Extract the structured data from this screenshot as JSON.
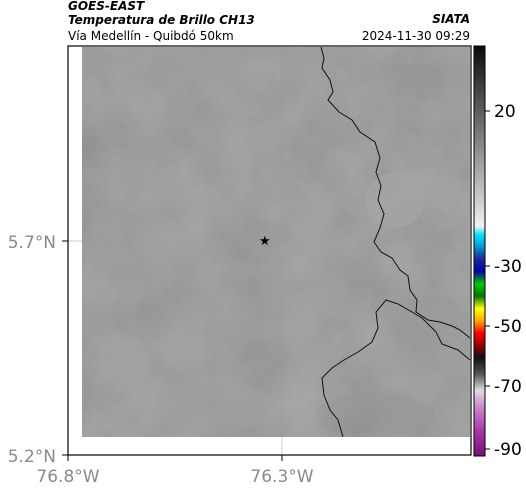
{
  "header": {
    "satellite": "GOES-EAST",
    "product": "Temperatura de Brillo CH13",
    "region": "Vía Medellín - Quibdó 50km",
    "organization": "SIATA",
    "datetime": "2024-11-30 09:29"
  },
  "axes": {
    "x_ticks": [
      {
        "value": -76.8,
        "label": "76.8°W"
      },
      {
        "value": -76.3,
        "label": "76.3°W"
      }
    ],
    "y_ticks": [
      {
        "value": 5.2,
        "label": "5.2°N"
      },
      {
        "value": 5.7,
        "label": "5.7°N"
      }
    ]
  },
  "colorbar": {
    "ticks": [
      {
        "value": 20,
        "label": "20"
      },
      {
        "value": -30,
        "label": "-30"
      },
      {
        "value": -50,
        "label": "-50"
      },
      {
        "value": -70,
        "label": "-70"
      },
      {
        "value": -90,
        "label": "-90"
      }
    ]
  },
  "marker": {
    "icon": "star-icon",
    "lon": -76.34,
    "lat": 5.7
  },
  "colors": {
    "background_field": "#7a7a7a",
    "boundary_line": "#111111"
  }
}
